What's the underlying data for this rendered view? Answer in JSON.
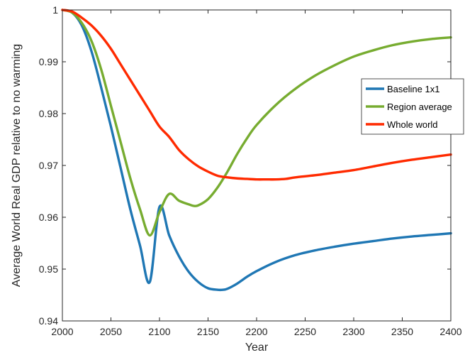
{
  "chart_data": {
    "type": "line",
    "title": "",
    "xlabel": "Year",
    "ylabel": "Average World Real GDP relative to no warming",
    "xlim": [
      2000,
      2400
    ],
    "ylim": [
      0.94,
      1.0
    ],
    "xticks": [
      2000,
      2050,
      2100,
      2150,
      2200,
      2250,
      2300,
      2350,
      2400
    ],
    "yticks": [
      0.94,
      0.95,
      0.96,
      0.97,
      0.98,
      0.99,
      1
    ],
    "ytick_labels": [
      "0.94",
      "0.95",
      "0.96",
      "0.97",
      "0.98",
      "0.99",
      "1"
    ],
    "grid": false,
    "legend_position": "top-right",
    "series": [
      {
        "name": "Baseline 1x1",
        "color": "#1f77b4",
        "x": [
          2000,
          2010,
          2020,
          2030,
          2040,
          2050,
          2060,
          2070,
          2080,
          2090,
          2100,
          2110,
          2120,
          2130,
          2140,
          2150,
          2160,
          2165,
          2170,
          2180,
          2190,
          2200,
          2220,
          2240,
          2260,
          2280,
          2300,
          2320,
          2340,
          2360,
          2380,
          2400
        ],
        "y": [
          1.0,
          0.9995,
          0.997,
          0.992,
          0.985,
          0.9775,
          0.9695,
          0.9615,
          0.9545,
          0.9475,
          0.962,
          0.9565,
          0.9525,
          0.9495,
          0.9475,
          0.9463,
          0.946,
          0.946,
          0.9462,
          0.9472,
          0.9485,
          0.9496,
          0.9514,
          0.9527,
          0.9536,
          0.9543,
          0.9549,
          0.9554,
          0.9559,
          0.9563,
          0.9566,
          0.9569
        ]
      },
      {
        "name": "Region average",
        "color": "#77ac30",
        "x": [
          2000,
          2010,
          2020,
          2030,
          2040,
          2050,
          2060,
          2070,
          2080,
          2090,
          2100,
          2110,
          2120,
          2130,
          2135,
          2140,
          2150,
          2160,
          2170,
          2180,
          2190,
          2200,
          2220,
          2240,
          2260,
          2280,
          2300,
          2320,
          2340,
          2360,
          2380,
          2400
        ],
        "y": [
          1.0,
          0.9995,
          0.9975,
          0.994,
          0.9885,
          0.9815,
          0.9745,
          0.9675,
          0.9615,
          0.9565,
          0.961,
          0.9645,
          0.9632,
          0.9625,
          0.9622,
          0.9623,
          0.9635,
          0.9658,
          0.9688,
          0.9722,
          0.9752,
          0.9778,
          0.9817,
          0.9848,
          0.9873,
          0.9893,
          0.991,
          0.9922,
          0.9932,
          0.9939,
          0.9944,
          0.9947
        ]
      },
      {
        "name": "Whole world",
        "color": "#ff2a00",
        "x": [
          2000,
          2010,
          2020,
          2030,
          2040,
          2050,
          2060,
          2070,
          2080,
          2090,
          2100,
          2110,
          2120,
          2130,
          2140,
          2150,
          2160,
          2170,
          2180,
          2190,
          2200,
          2210,
          2220,
          2230,
          2240,
          2260,
          2280,
          2300,
          2320,
          2340,
          2360,
          2380,
          2400
        ],
        "y": [
          1.0,
          0.9997,
          0.9985,
          0.997,
          0.995,
          0.9925,
          0.9895,
          0.9865,
          0.9835,
          0.9805,
          0.9775,
          0.9755,
          0.973,
          0.9712,
          0.9698,
          0.9688,
          0.968,
          0.9677,
          0.9675,
          0.9674,
          0.9673,
          0.9673,
          0.9673,
          0.9674,
          0.9677,
          0.9681,
          0.9686,
          0.9691,
          0.9698,
          0.9705,
          0.9711,
          0.9716,
          0.9721
        ]
      }
    ]
  }
}
